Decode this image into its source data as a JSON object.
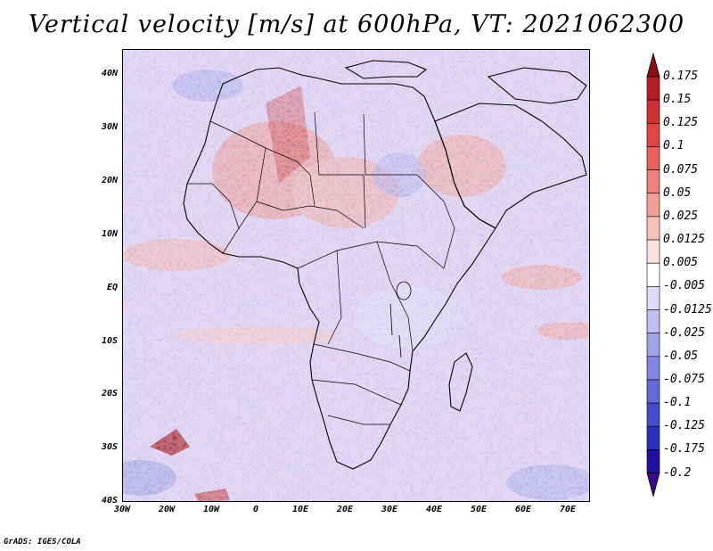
{
  "title": "Vertical velocity [m/s] at 600hPa, VT: 2021062300",
  "credit": "GrADS: IGES/COLA",
  "lat_labels": [
    "40N",
    "30N",
    "20N",
    "10N",
    "EQ",
    "10S",
    "20S",
    "30S",
    "40S"
  ],
  "lon_labels": [
    "30W",
    "20W",
    "10W",
    "0",
    "10E",
    "20E",
    "30E",
    "40E",
    "50E",
    "60E",
    "70E"
  ],
  "colorbar": {
    "labels": [
      "0.175",
      "0.15",
      "0.125",
      "0.1",
      "0.075",
      "0.05",
      "0.025",
      "0.0125",
      "0.005",
      "-0.005",
      "-0.0125",
      "-0.025",
      "-0.05",
      "-0.075",
      "-0.1",
      "-0.125",
      "-0.175",
      "-0.2"
    ],
    "colors": [
      "#8e0c14",
      "#b51d25",
      "#cf2f33",
      "#e04444",
      "#e8615c",
      "#ef8078",
      "#f3a098",
      "#f7c2bc",
      "#fbe2df",
      "#ffffff",
      "#dcdcf7",
      "#bfc0f0",
      "#a1a3ea",
      "#8385e2",
      "#6568d8",
      "#484bcc",
      "#2f2fb8",
      "#2010a0",
      "#3c0a8a"
    ]
  },
  "colors": {
    "ocean_base": "#d4d2f2",
    "land_base": "#c7c2ea",
    "outline": "#000000"
  }
}
